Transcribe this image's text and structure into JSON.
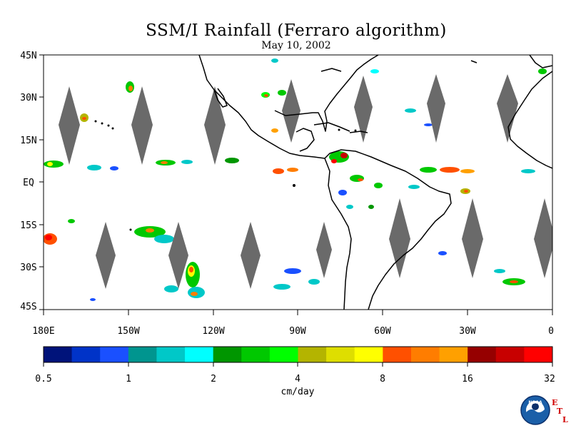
{
  "title": "SSM/I Rainfall (Ferraro algorithm)",
  "subtitle": "May 10, 2002",
  "map": {
    "lat_labels": [
      "45N",
      "30N",
      "15N",
      "EQ",
      "15S",
      "30S",
      "45S"
    ],
    "lon_labels": [
      "180E",
      "150W",
      "120W",
      "90W",
      "60W",
      "30W",
      "0"
    ],
    "lat_range": [
      -45,
      45
    ],
    "lon_range": [
      -180,
      0
    ],
    "gap_fill_color": "#6a6a6a",
    "coastline_color": "#000000"
  },
  "colorbar": {
    "unit_label": "cm/day",
    "tick_labels": [
      "0.5",
      "1",
      "2",
      "4",
      "8",
      "16",
      "32"
    ],
    "colors": [
      "#00137a",
      "#0033c8",
      "#1a50ff",
      "#00958f",
      "#00c8c8",
      "#00ffff",
      "#009600",
      "#00c800",
      "#00ff00",
      "#b4b400",
      "#dede00",
      "#ffff00",
      "#ff5000",
      "#ff7d00",
      "#ffa000",
      "#960000",
      "#c80000",
      "#ff0000"
    ]
  },
  "logos": {
    "noaa": "NOAA",
    "etl": [
      "E",
      "T",
      "L"
    ]
  }
}
